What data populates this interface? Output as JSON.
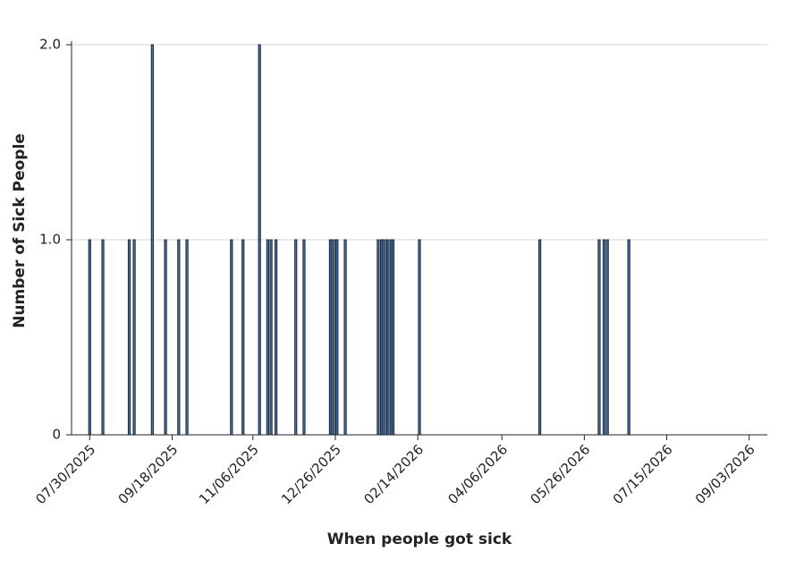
{
  "chart_data": {
    "type": "bar",
    "x_label": "When people got sick",
    "y_label": "Number of Sick People",
    "x": [
      "2025-07-30",
      "2025-08-07",
      "2025-08-23",
      "2025-08-26",
      "2025-09-06",
      "2025-09-14",
      "2025-09-22",
      "2025-09-27",
      "2025-10-24",
      "2025-10-31",
      "2025-11-10",
      "2025-11-15",
      "2025-11-17",
      "2025-11-20",
      "2025-12-02",
      "2025-12-07",
      "2025-12-23",
      "2025-12-24",
      "2025-12-26",
      "2025-12-27",
      "2026-01-01",
      "2026-01-21",
      "2026-01-23",
      "2026-01-24",
      "2026-01-26",
      "2026-01-27",
      "2026-01-29",
      "2026-01-30",
      "2026-02-15",
      "2026-04-29",
      "2026-06-04",
      "2026-06-07",
      "2026-06-09",
      "2026-06-22"
    ],
    "values": [
      1,
      1,
      1,
      1,
      2,
      1,
      1,
      1,
      1,
      1,
      2,
      1,
      1,
      1,
      1,
      1,
      1,
      1,
      1,
      1,
      1,
      1,
      1,
      1,
      1,
      1,
      1,
      1,
      1,
      1,
      1,
      1,
      1,
      1
    ],
    "color": "#4a78b0",
    "xlim": [
      "2025-07-19",
      "2026-09-14"
    ],
    "xticks": [
      {
        "value": "2025-07-30",
        "label": "07/30/2025"
      },
      {
        "value": "2025-09-18",
        "label": "09/18/2025"
      },
      {
        "value": "2025-11-06",
        "label": "11/06/2025"
      },
      {
        "value": "2025-12-26",
        "label": "12/26/2025"
      },
      {
        "value": "2026-02-14",
        "label": "02/14/2026"
      },
      {
        "value": "2026-04-06",
        "label": "04/06/2026"
      },
      {
        "value": "2026-05-26",
        "label": "05/26/2026"
      },
      {
        "value": "2026-07-15",
        "label": "07/15/2026"
      },
      {
        "value": "2026-09-03",
        "label": "09/03/2026"
      }
    ],
    "ylim": [
      0,
      2
    ],
    "yticks": [
      0,
      {
        "value": 1,
        "label": "1.0"
      },
      {
        "value": 2,
        "label": "2.0"
      }
    ],
    "grid": true
  }
}
